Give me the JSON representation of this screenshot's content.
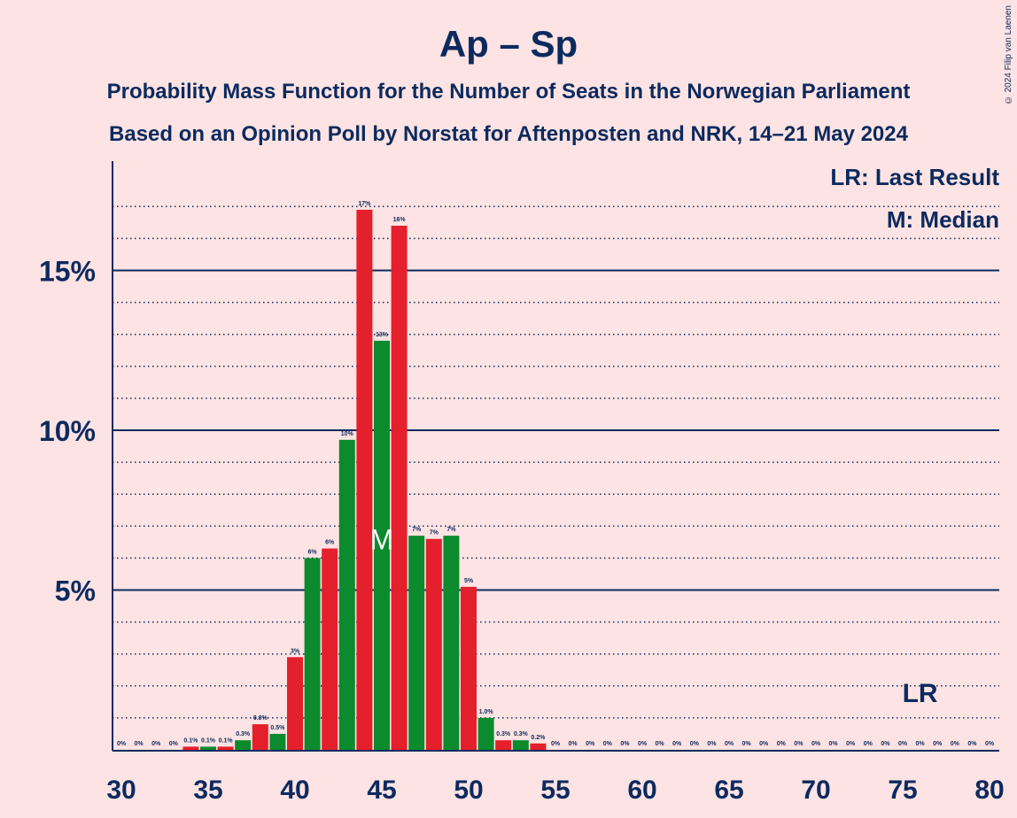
{
  "title": "Ap – Sp",
  "subtitle": "Probability Mass Function for the Number of Seats in the Norwegian Parliament",
  "subtitle2": "Based on an Opinion Poll by Norstat for Aftenposten and NRK, 14–21 May 2024",
  "copyright": "© 2024 Filip van Laenen",
  "legend": {
    "lr": "LR: Last Result",
    "m": "M: Median"
  },
  "markers": {
    "median_label": "M",
    "median_seat": 45,
    "last_result_label": "LR",
    "last_result_seat": 76
  },
  "colors": {
    "background": "#FDE3E3",
    "axis": "#0C2A5E",
    "red": "#E3202B",
    "green": "#0B8A2E"
  },
  "chart_data": {
    "type": "bar",
    "x_range": [
      30,
      80
    ],
    "x_ticks": [
      30,
      35,
      40,
      45,
      50,
      55,
      60,
      65,
      70,
      75,
      80
    ],
    "y_ticks": [
      {
        "value": 5,
        "label": "5%"
      },
      {
        "value": 10,
        "label": "10%"
      },
      {
        "value": 15,
        "label": "15%"
      }
    ],
    "ylim": [
      0,
      18
    ],
    "grid": true,
    "bars": [
      {
        "seat": 30,
        "value": 0,
        "label": "0%"
      },
      {
        "seat": 31,
        "value": 0,
        "label": "0%"
      },
      {
        "seat": 32,
        "value": 0,
        "label": "0%"
      },
      {
        "seat": 33,
        "value": 0,
        "label": "0%"
      },
      {
        "seat": 34,
        "value": 0.1,
        "label": "0.1%"
      },
      {
        "seat": 35,
        "value": 0.1,
        "label": "0.1%"
      },
      {
        "seat": 36,
        "value": 0.1,
        "label": "0.1%"
      },
      {
        "seat": 37,
        "value": 0.3,
        "label": "0.3%"
      },
      {
        "seat": 38,
        "value": 0.8,
        "label": "0.8%"
      },
      {
        "seat": 39,
        "value": 0.5,
        "label": "0.5%"
      },
      {
        "seat": 40,
        "value": 2.9,
        "label": "3%"
      },
      {
        "seat": 41,
        "value": 6.0,
        "label": "6%"
      },
      {
        "seat": 42,
        "value": 6.3,
        "label": "6%"
      },
      {
        "seat": 43,
        "value": 9.7,
        "label": "10%"
      },
      {
        "seat": 44,
        "value": 16.9,
        "label": "17%"
      },
      {
        "seat": 45,
        "value": 12.8,
        "label": "13%"
      },
      {
        "seat": 46,
        "value": 16.4,
        "label": "16%"
      },
      {
        "seat": 47,
        "value": 6.7,
        "label": "7%"
      },
      {
        "seat": 48,
        "value": 6.6,
        "label": "7%"
      },
      {
        "seat": 49,
        "value": 6.7,
        "label": "7%"
      },
      {
        "seat": 50,
        "value": 5.1,
        "label": "5%"
      },
      {
        "seat": 51,
        "value": 1.0,
        "label": "1.0%"
      },
      {
        "seat": 52,
        "value": 0.3,
        "label": "0.3%"
      },
      {
        "seat": 53,
        "value": 0.3,
        "label": "0.3%"
      },
      {
        "seat": 54,
        "value": 0.2,
        "label": "0.2%"
      },
      {
        "seat": 55,
        "value": 0,
        "label": "0%"
      },
      {
        "seat": 56,
        "value": 0,
        "label": "0%"
      },
      {
        "seat": 57,
        "value": 0,
        "label": "0%"
      },
      {
        "seat": 58,
        "value": 0,
        "label": "0%"
      },
      {
        "seat": 59,
        "value": 0,
        "label": "0%"
      },
      {
        "seat": 60,
        "value": 0,
        "label": "0%"
      },
      {
        "seat": 61,
        "value": 0,
        "label": "0%"
      },
      {
        "seat": 62,
        "value": 0,
        "label": "0%"
      },
      {
        "seat": 63,
        "value": 0,
        "label": "0%"
      },
      {
        "seat": 64,
        "value": 0,
        "label": "0%"
      },
      {
        "seat": 65,
        "value": 0,
        "label": "0%"
      },
      {
        "seat": 66,
        "value": 0,
        "label": "0%"
      },
      {
        "seat": 67,
        "value": 0,
        "label": "0%"
      },
      {
        "seat": 68,
        "value": 0,
        "label": "0%"
      },
      {
        "seat": 69,
        "value": 0,
        "label": "0%"
      },
      {
        "seat": 70,
        "value": 0,
        "label": "0%"
      },
      {
        "seat": 71,
        "value": 0,
        "label": "0%"
      },
      {
        "seat": 72,
        "value": 0,
        "label": "0%"
      },
      {
        "seat": 73,
        "value": 0,
        "label": "0%"
      },
      {
        "seat": 74,
        "value": 0,
        "label": "0%"
      },
      {
        "seat": 75,
        "value": 0,
        "label": "0%"
      },
      {
        "seat": 76,
        "value": 0,
        "label": "0%"
      },
      {
        "seat": 77,
        "value": 0,
        "label": "0%"
      },
      {
        "seat": 78,
        "value": 0,
        "label": "0%"
      },
      {
        "seat": 79,
        "value": 0,
        "label": "0%"
      },
      {
        "seat": 80,
        "value": 0,
        "label": "0%"
      }
    ]
  }
}
